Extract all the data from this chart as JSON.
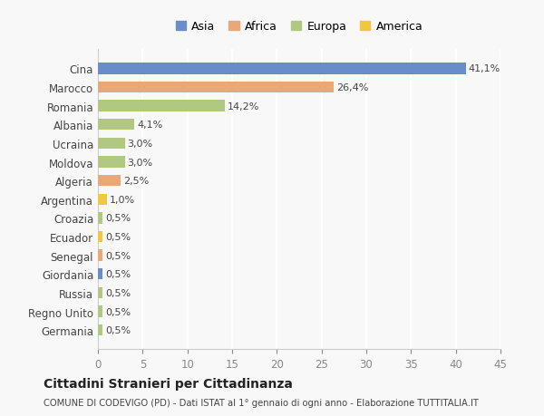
{
  "countries": [
    "Cina",
    "Marocco",
    "Romania",
    "Albania",
    "Ucraina",
    "Moldova",
    "Algeria",
    "Argentina",
    "Croazia",
    "Ecuador",
    "Senegal",
    "Giordania",
    "Russia",
    "Regno Unito",
    "Germania"
  ],
  "values": [
    41.1,
    26.4,
    14.2,
    4.1,
    3.0,
    3.0,
    2.5,
    1.0,
    0.5,
    0.5,
    0.5,
    0.5,
    0.5,
    0.5,
    0.5
  ],
  "labels": [
    "41,1%",
    "26,4%",
    "14,2%",
    "4,1%",
    "3,0%",
    "3,0%",
    "2,5%",
    "1,0%",
    "0,5%",
    "0,5%",
    "0,5%",
    "0,5%",
    "0,5%",
    "0,5%",
    "0,5%"
  ],
  "continents": [
    "Asia",
    "Africa",
    "Europa",
    "Europa",
    "Europa",
    "Europa",
    "Africa",
    "America",
    "Europa",
    "America",
    "Africa",
    "Asia",
    "Europa",
    "Europa",
    "Europa"
  ],
  "colors": {
    "Asia": "#6b8cca",
    "Africa": "#e8a878",
    "Europa": "#b0c880",
    "America": "#f0c840"
  },
  "legend_order": [
    "Asia",
    "Africa",
    "Europa",
    "America"
  ],
  "title": "Cittadini Stranieri per Cittadinanza",
  "subtitle": "COMUNE DI CODEVIGO (PD) - Dati ISTAT al 1° gennaio di ogni anno - Elaborazione TUTTITALIA.IT",
  "xlim": [
    0,
    45
  ],
  "xticks": [
    0,
    5,
    10,
    15,
    20,
    25,
    30,
    35,
    40,
    45
  ],
  "bg_color": "#f8f8f8",
  "grid_color": "#ffffff",
  "bar_height": 0.6
}
